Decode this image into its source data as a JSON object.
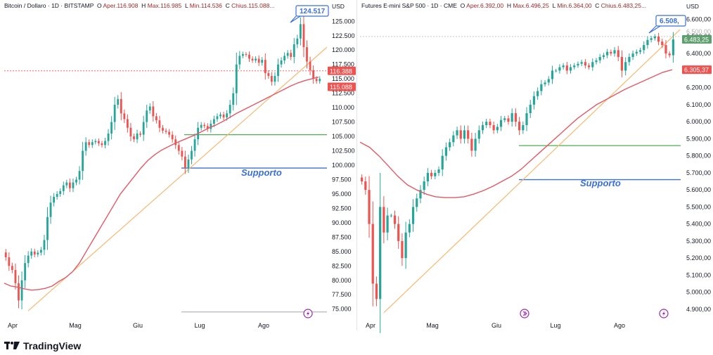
{
  "brand": {
    "name": "TradingView",
    "logo": "tradingview-logo-icon"
  },
  "colors": {
    "up": "#26a69a",
    "down": "#ef5350",
    "ma": "#e05a66",
    "trend": "#f5b971",
    "support_h": "#3a6fd8",
    "resistance_h": "#4caf50",
    "label": "#3a6fd8"
  },
  "panels": [
    {
      "id": "btc",
      "header": {
        "symbol": "Bitcoin / Dollaro · 1D · BITSTAMP",
        "o_label": "O",
        "o_value": "Aper.116.908",
        "h_label": "H",
        "h_value": "Max.116.985",
        "l_label": "L",
        "l_value": "Min.114.536",
        "c_label": "C",
        "c_value": "Chius.115.088..."
      },
      "currency": "USD",
      "price_tags": {
        "high_tag": "124.517",
        "tag_last": "116.388",
        "tag_ma": "115.088"
      },
      "support_label": "Supporto",
      "icons": [
        "lightning-icon"
      ],
      "chart_data": {
        "type": "candlestick",
        "title": "Bitcoin / Dollaro · 1D · BITSTAMP",
        "y_ticks": [
          "125.000",
          "122.500",
          "120.000",
          "117.500",
          "115.000",
          "112.500",
          "110.000",
          "107.500",
          "105.000",
          "102.500",
          "100.000",
          "97.500",
          "95.000",
          "92.500",
          "90.000",
          "87.500",
          "85.000",
          "82.500",
          "80.000",
          "77.500",
          "75.000"
        ],
        "x_ticks": [
          "Apr",
          "Mag",
          "Giu",
          "Lug",
          "Ago"
        ],
        "ylim": [
          73500,
          126500
        ],
        "close": [
          84000,
          82500,
          81800,
          79500,
          76500,
          80000,
          83000,
          84300,
          85000,
          84500,
          84800,
          85300,
          87000,
          91000,
          93500,
          94500,
          95000,
          95500,
          96500,
          97000,
          96000,
          97000,
          97500,
          99000,
          102500,
          104000,
          103500,
          104000,
          104200,
          103800,
          103500,
          104200,
          105500,
          107500,
          110500,
          111500,
          109000,
          108000,
          106500,
          105000,
          104500,
          105500,
          105300,
          107500,
          109500,
          110200,
          108500,
          107800,
          106500,
          106000,
          105800,
          105300,
          104500,
          103500,
          102500,
          101500,
          99500,
          101000,
          102500,
          104500,
          106500,
          107000,
          106800,
          106300,
          107200,
          108000,
          108500,
          108800,
          108300,
          109000,
          110500,
          112500,
          117500,
          119000,
          119300,
          119200,
          118500,
          118200,
          118500,
          117800,
          118300,
          116000,
          115500,
          114500,
          115500,
          117500,
          118200,
          119000,
          119500,
          118800,
          121000,
          122000,
          124500,
          120500,
          118000,
          116500,
          115000,
          114600,
          115000
        ]
      }
    },
    {
      "id": "spx",
      "header": {
        "symbol": "Futures E-mini S&P 500 · 1D · CME",
        "o_label": "O",
        "o_value": "Aper.6.392,00",
        "h_label": "H",
        "h_value": "Max.6.496,25",
        "l_label": "L",
        "l_value": "Min.6.364,00",
        "c_label": "C",
        "c_value": "Chius.6.483,25..."
      },
      "currency": "USD",
      "price_tags": {
        "high_tag": "6.508,",
        "tag_last": "6.483,25",
        "tag_ma": "6.305,37",
        "tag_hidden": "6.500,00"
      },
      "support_label": "Supporto",
      "icons": [
        "chevron-right-circle-icon",
        "lightning-icon"
      ],
      "chart_data": {
        "type": "candlestick",
        "title": "Futures E-mini S&P 500 · 1D · CME",
        "y_ticks": [
          "6.600,00",
          "6.500,00",
          "6.400,00",
          "6.300,00",
          "6.200,00",
          "6.100,00",
          "6.000,00",
          "5.900,00",
          "5.800,00",
          "5.700,00",
          "5.600,00",
          "5.500,00",
          "5.400,00",
          "5.300,00",
          "5.200,00",
          "5.100,00",
          "5.000,00",
          "4.900,00"
        ],
        "x_ticks": [
          "Apr",
          "Mag",
          "Giu",
          "Lug",
          "Ago"
        ],
        "ylim": [
          4850,
          6640
        ],
        "close": [
          5650,
          5600,
          5400,
          5050,
          4960,
          5500,
          5350,
          5450,
          5450,
          5400,
          5300,
          5200,
          5350,
          5400,
          5500,
          5550,
          5600,
          5650,
          5700,
          5680,
          5700,
          5720,
          5800,
          5850,
          5880,
          5920,
          5950,
          5900,
          5950,
          5900,
          5830,
          5900,
          5950,
          5980,
          6000,
          5980,
          5950,
          5970,
          6010,
          6020,
          6000,
          6050,
          6000,
          5950,
          5980,
          6050,
          6100,
          6150,
          6180,
          6220,
          6230,
          6250,
          6300,
          6300,
          6320,
          6330,
          6300,
          6320,
          6330,
          6340,
          6350,
          6330,
          6320,
          6350,
          6360,
          6380,
          6390,
          6410,
          6400,
          6420,
          6380,
          6300,
          6350,
          6380,
          6400,
          6410,
          6420,
          6450,
          6480,
          6490,
          6500,
          6470,
          6450,
          6400,
          6390,
          6483
        ]
      }
    }
  ]
}
